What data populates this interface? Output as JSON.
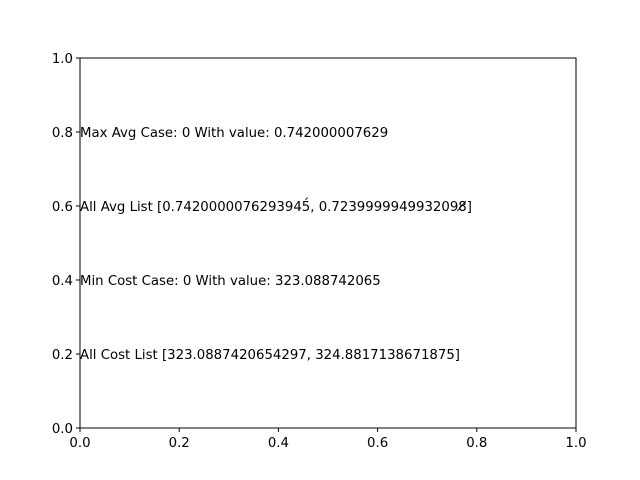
{
  "chart_data": {
    "type": "scatter",
    "title": "",
    "xlabel": "",
    "ylabel": "",
    "xlim": [
      0.0,
      1.0
    ],
    "ylim": [
      0.0,
      1.0
    ],
    "grid": false,
    "x_ticks": [
      "0.0",
      "0.2",
      "0.4",
      "0.6",
      "0.8",
      "1.0"
    ],
    "y_ticks": [
      "0.0",
      "0.2",
      "0.4",
      "0.6",
      "0.8",
      "1.0"
    ],
    "series": [],
    "annotations": [
      {
        "x": 0.0,
        "y": 0.8,
        "text": "Max Avg Case: 0 With value: 0.742000007629"
      },
      {
        "x": 0.0,
        "y": 0.6,
        "text": "All Avg List [0.7420000076293945́, 0.7239999949932098̸]"
      },
      {
        "x": 0.0,
        "y": 0.4,
        "text": "Min Cost Case: 0 With value: 323.088742065"
      },
      {
        "x": 0.0,
        "y": 0.2,
        "text": "All Cost List [323.0887420654297, 324.8817138671875]"
      }
    ]
  }
}
